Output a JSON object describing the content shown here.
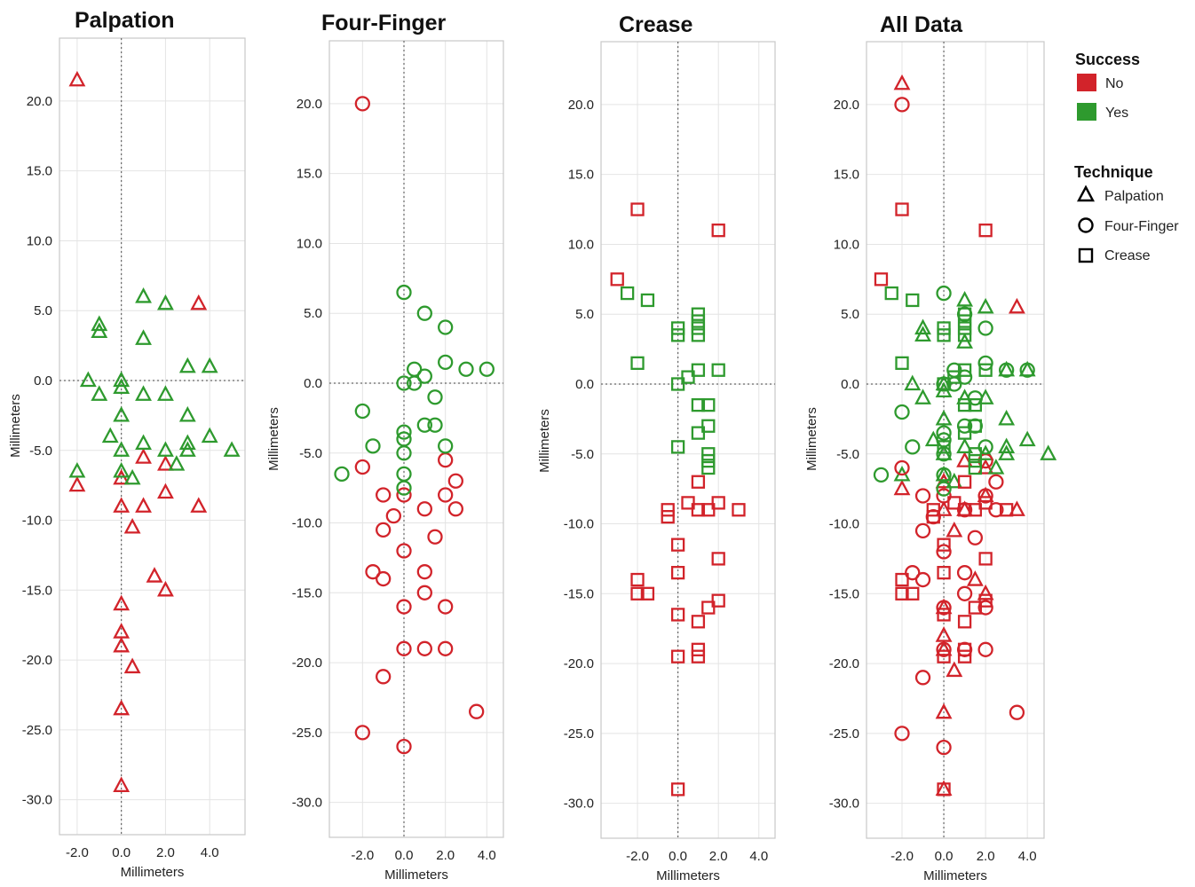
{
  "colors": {
    "No": "#d2232a",
    "Yes": "#2e9a2e",
    "grid": "#e4e4e4",
    "frame": "#c8c8c8",
    "ref": "#666666"
  },
  "legend": {
    "success_title": "Success",
    "success_items": [
      {
        "key": "No",
        "label": "No"
      },
      {
        "key": "Yes",
        "label": "Yes"
      }
    ],
    "technique_title": "Technique",
    "technique_items": [
      {
        "shape": "triangle",
        "label": "Palpation"
      },
      {
        "shape": "circle",
        "label": "Four-Finger"
      },
      {
        "shape": "square",
        "label": "Crease"
      }
    ],
    "placement": "right"
  },
  "chart_data": [
    {
      "type": "scatter",
      "title": "Palpation",
      "xlabel": "Millimeters",
      "ylabel": "Millimeters",
      "xticks": [
        -2.0,
        0.0,
        2.0,
        4.0
      ],
      "yticks": [
        20.0,
        15.0,
        10.0,
        5.0,
        0.0,
        -5.0,
        -10.0,
        -15.0,
        -20.0,
        -25.0,
        -30.0
      ],
      "tick_labels_x": [
        "-2.0",
        "0.0",
        "2.0",
        "4.0"
      ],
      "tick_labels_y": [
        "20.0",
        "15.0",
        "10.0",
        "5.0",
        "0.0",
        "-5.0",
        "-10.0",
        "-15.0",
        "-20.0",
        "-25.0",
        "-30.0"
      ],
      "xlim": [
        -2.8,
        5.6
      ],
      "ylim": [
        -32.5,
        24.5
      ],
      "grid": true,
      "points": [
        {
          "x": -2.0,
          "y": 21.5,
          "s": "No",
          "t": "triangle"
        },
        {
          "x": 3.5,
          "y": 5.5,
          "s": "No",
          "t": "triangle"
        },
        {
          "x": 0.0,
          "y": -7.0,
          "s": "No",
          "t": "triangle"
        },
        {
          "x": -2.0,
          "y": -7.5,
          "s": "No",
          "t": "triangle"
        },
        {
          "x": 2.0,
          "y": -6.0,
          "s": "No",
          "t": "triangle"
        },
        {
          "x": 1.0,
          "y": -5.5,
          "s": "No",
          "t": "triangle"
        },
        {
          "x": 2.0,
          "y": -8.0,
          "s": "No",
          "t": "triangle"
        },
        {
          "x": 0.0,
          "y": -9.0,
          "s": "No",
          "t": "triangle"
        },
        {
          "x": 1.0,
          "y": -9.0,
          "s": "No",
          "t": "triangle"
        },
        {
          "x": 3.5,
          "y": -9.0,
          "s": "No",
          "t": "triangle"
        },
        {
          "x": 0.5,
          "y": -10.5,
          "s": "No",
          "t": "triangle"
        },
        {
          "x": 1.5,
          "y": -14.0,
          "s": "No",
          "t": "triangle"
        },
        {
          "x": 2.0,
          "y": -15.0,
          "s": "No",
          "t": "triangle"
        },
        {
          "x": 0.0,
          "y": -16.0,
          "s": "No",
          "t": "triangle"
        },
        {
          "x": 0.0,
          "y": -18.0,
          "s": "No",
          "t": "triangle"
        },
        {
          "x": 0.0,
          "y": -19.0,
          "s": "No",
          "t": "triangle"
        },
        {
          "x": 0.5,
          "y": -20.5,
          "s": "No",
          "t": "triangle"
        },
        {
          "x": 0.0,
          "y": -23.5,
          "s": "No",
          "t": "triangle"
        },
        {
          "x": 0.0,
          "y": -29.0,
          "s": "No",
          "t": "triangle"
        },
        {
          "x": 1.0,
          "y": 6.0,
          "s": "Yes",
          "t": "triangle"
        },
        {
          "x": 2.0,
          "y": 5.5,
          "s": "Yes",
          "t": "triangle"
        },
        {
          "x": -1.0,
          "y": 4.0,
          "s": "Yes",
          "t": "triangle"
        },
        {
          "x": -1.0,
          "y": 3.5,
          "s": "Yes",
          "t": "triangle"
        },
        {
          "x": 1.0,
          "y": 3.0,
          "s": "Yes",
          "t": "triangle"
        },
        {
          "x": 3.0,
          "y": 1.0,
          "s": "Yes",
          "t": "triangle"
        },
        {
          "x": 4.0,
          "y": 1.0,
          "s": "Yes",
          "t": "triangle"
        },
        {
          "x": -1.5,
          "y": 0.0,
          "s": "Yes",
          "t": "triangle"
        },
        {
          "x": 0.0,
          "y": 0.0,
          "s": "Yes",
          "t": "triangle"
        },
        {
          "x": 0.0,
          "y": -0.5,
          "s": "Yes",
          "t": "triangle"
        },
        {
          "x": -1.0,
          "y": -1.0,
          "s": "Yes",
          "t": "triangle"
        },
        {
          "x": 1.0,
          "y": -1.0,
          "s": "Yes",
          "t": "triangle"
        },
        {
          "x": 2.0,
          "y": -1.0,
          "s": "Yes",
          "t": "triangle"
        },
        {
          "x": 0.0,
          "y": -2.5,
          "s": "Yes",
          "t": "triangle"
        },
        {
          "x": 3.0,
          "y": -2.5,
          "s": "Yes",
          "t": "triangle"
        },
        {
          "x": -0.5,
          "y": -4.0,
          "s": "Yes",
          "t": "triangle"
        },
        {
          "x": 4.0,
          "y": -4.0,
          "s": "Yes",
          "t": "triangle"
        },
        {
          "x": 1.0,
          "y": -4.5,
          "s": "Yes",
          "t": "triangle"
        },
        {
          "x": 3.0,
          "y": -4.5,
          "s": "Yes",
          "t": "triangle"
        },
        {
          "x": 0.0,
          "y": -5.0,
          "s": "Yes",
          "t": "triangle"
        },
        {
          "x": 2.0,
          "y": -5.0,
          "s": "Yes",
          "t": "triangle"
        },
        {
          "x": 3.0,
          "y": -5.0,
          "s": "Yes",
          "t": "triangle"
        },
        {
          "x": 5.0,
          "y": -5.0,
          "s": "Yes",
          "t": "triangle"
        },
        {
          "x": 2.5,
          "y": -6.0,
          "s": "Yes",
          "t": "triangle"
        },
        {
          "x": -2.0,
          "y": -6.5,
          "s": "Yes",
          "t": "triangle"
        },
        {
          "x": 0.0,
          "y": -6.5,
          "s": "Yes",
          "t": "triangle"
        },
        {
          "x": 0.5,
          "y": -7.0,
          "s": "Yes",
          "t": "triangle"
        }
      ]
    },
    {
      "type": "scatter",
      "title": "Four-Finger",
      "xlabel": "Millimeters",
      "ylabel": "Millimeters",
      "xticks": [
        -2.0,
        0.0,
        2.0,
        4.0
      ],
      "yticks": [
        20.0,
        15.0,
        10.0,
        5.0,
        0.0,
        -5.0,
        -10.0,
        -15.0,
        -20.0,
        -25.0,
        -30.0
      ],
      "tick_labels_x": [
        "-2.0",
        "0.0",
        "2.0",
        "4.0"
      ],
      "tick_labels_y": [
        "20.0",
        "15.0",
        "10.0",
        "5.0",
        "0.0",
        "-5.0",
        "-10.0",
        "-15.0",
        "-20.0",
        "-25.0",
        "-30.0"
      ],
      "xlim": [
        -3.6,
        4.8
      ],
      "ylim": [
        -32.5,
        24.5
      ],
      "grid": true,
      "points": [
        {
          "x": -2.0,
          "y": 20.0,
          "s": "No",
          "t": "circle"
        },
        {
          "x": -2.0,
          "y": -6.0,
          "s": "No",
          "t": "circle"
        },
        {
          "x": 2.0,
          "y": -5.5,
          "s": "No",
          "t": "circle"
        },
        {
          "x": 2.5,
          "y": -7.0,
          "s": "No",
          "t": "circle"
        },
        {
          "x": 0.0,
          "y": -8.0,
          "s": "No",
          "t": "circle"
        },
        {
          "x": -1.0,
          "y": -8.0,
          "s": "No",
          "t": "circle"
        },
        {
          "x": 2.0,
          "y": -8.0,
          "s": "No",
          "t": "circle"
        },
        {
          "x": 1.0,
          "y": -9.0,
          "s": "No",
          "t": "circle"
        },
        {
          "x": 2.5,
          "y": -9.0,
          "s": "No",
          "t": "circle"
        },
        {
          "x": -0.5,
          "y": -9.5,
          "s": "No",
          "t": "circle"
        },
        {
          "x": -1.0,
          "y": -10.5,
          "s": "No",
          "t": "circle"
        },
        {
          "x": 1.5,
          "y": -11.0,
          "s": "No",
          "t": "circle"
        },
        {
          "x": 0.0,
          "y": -12.0,
          "s": "No",
          "t": "circle"
        },
        {
          "x": -1.5,
          "y": -13.5,
          "s": "No",
          "t": "circle"
        },
        {
          "x": 1.0,
          "y": -13.5,
          "s": "No",
          "t": "circle"
        },
        {
          "x": -1.0,
          "y": -14.0,
          "s": "No",
          "t": "circle"
        },
        {
          "x": 1.0,
          "y": -15.0,
          "s": "No",
          "t": "circle"
        },
        {
          "x": 0.0,
          "y": -16.0,
          "s": "No",
          "t": "circle"
        },
        {
          "x": 2.0,
          "y": -16.0,
          "s": "No",
          "t": "circle"
        },
        {
          "x": 0.0,
          "y": -19.0,
          "s": "No",
          "t": "circle"
        },
        {
          "x": 1.0,
          "y": -19.0,
          "s": "No",
          "t": "circle"
        },
        {
          "x": 2.0,
          "y": -19.0,
          "s": "No",
          "t": "circle"
        },
        {
          "x": -1.0,
          "y": -21.0,
          "s": "No",
          "t": "circle"
        },
        {
          "x": 3.5,
          "y": -23.5,
          "s": "No",
          "t": "circle"
        },
        {
          "x": -2.0,
          "y": -25.0,
          "s": "No",
          "t": "circle"
        },
        {
          "x": 0.0,
          "y": -26.0,
          "s": "No",
          "t": "circle"
        },
        {
          "x": 0.0,
          "y": 6.5,
          "s": "Yes",
          "t": "circle"
        },
        {
          "x": 1.0,
          "y": 5.0,
          "s": "Yes",
          "t": "circle"
        },
        {
          "x": 2.0,
          "y": 4.0,
          "s": "Yes",
          "t": "circle"
        },
        {
          "x": 2.0,
          "y": 1.5,
          "s": "Yes",
          "t": "circle"
        },
        {
          "x": 0.5,
          "y": 1.0,
          "s": "Yes",
          "t": "circle"
        },
        {
          "x": 3.0,
          "y": 1.0,
          "s": "Yes",
          "t": "circle"
        },
        {
          "x": 4.0,
          "y": 1.0,
          "s": "Yes",
          "t": "circle"
        },
        {
          "x": 1.0,
          "y": 0.5,
          "s": "Yes",
          "t": "circle"
        },
        {
          "x": 0.0,
          "y": 0.0,
          "s": "Yes",
          "t": "circle"
        },
        {
          "x": 0.5,
          "y": 0.0,
          "s": "Yes",
          "t": "circle"
        },
        {
          "x": 1.5,
          "y": -1.0,
          "s": "Yes",
          "t": "circle"
        },
        {
          "x": -2.0,
          "y": -2.0,
          "s": "Yes",
          "t": "circle"
        },
        {
          "x": 1.0,
          "y": -3.0,
          "s": "Yes",
          "t": "circle"
        },
        {
          "x": 1.5,
          "y": -3.0,
          "s": "Yes",
          "t": "circle"
        },
        {
          "x": 0.0,
          "y": -3.5,
          "s": "Yes",
          "t": "circle"
        },
        {
          "x": 0.0,
          "y": -4.0,
          "s": "Yes",
          "t": "circle"
        },
        {
          "x": -1.5,
          "y": -4.5,
          "s": "Yes",
          "t": "circle"
        },
        {
          "x": 2.0,
          "y": -4.5,
          "s": "Yes",
          "t": "circle"
        },
        {
          "x": 0.0,
          "y": -5.0,
          "s": "Yes",
          "t": "circle"
        },
        {
          "x": -3.0,
          "y": -6.5,
          "s": "Yes",
          "t": "circle"
        },
        {
          "x": 0.0,
          "y": -6.5,
          "s": "Yes",
          "t": "circle"
        },
        {
          "x": 0.0,
          "y": -7.5,
          "s": "Yes",
          "t": "circle"
        }
      ]
    },
    {
      "type": "scatter",
      "title": "Crease",
      "xlabel": "Millimeters",
      "ylabel": "Millimeters",
      "xticks": [
        -2.0,
        0.0,
        2.0,
        4.0
      ],
      "yticks": [
        20.0,
        15.0,
        10.0,
        5.0,
        0.0,
        -5.0,
        -10.0,
        -15.0,
        -20.0,
        -25.0,
        -30.0
      ],
      "tick_labels_x": [
        "-2.0",
        "0.0",
        "2.0",
        "4.0"
      ],
      "tick_labels_y": [
        "20.0",
        "15.0",
        "10.0",
        "5.0",
        "0.0",
        "-5.0",
        "-10.0",
        "-15.0",
        "-20.0",
        "-25.0",
        "-30.0"
      ],
      "xlim": [
        -3.8,
        4.8
      ],
      "ylim": [
        -32.5,
        24.5
      ],
      "grid": true,
      "points": [
        {
          "x": -2.0,
          "y": 12.5,
          "s": "No",
          "t": "square"
        },
        {
          "x": 2.0,
          "y": 11.0,
          "s": "No",
          "t": "square"
        },
        {
          "x": -3.0,
          "y": 7.5,
          "s": "No",
          "t": "square"
        },
        {
          "x": 1.0,
          "y": -7.0,
          "s": "No",
          "t": "square"
        },
        {
          "x": 0.5,
          "y": -8.5,
          "s": "No",
          "t": "square"
        },
        {
          "x": 2.0,
          "y": -8.5,
          "s": "No",
          "t": "square"
        },
        {
          "x": 1.0,
          "y": -9.0,
          "s": "No",
          "t": "square"
        },
        {
          "x": 1.5,
          "y": -9.0,
          "s": "No",
          "t": "square"
        },
        {
          "x": 3.0,
          "y": -9.0,
          "s": "No",
          "t": "square"
        },
        {
          "x": -0.5,
          "y": -9.0,
          "s": "No",
          "t": "square"
        },
        {
          "x": -0.5,
          "y": -9.5,
          "s": "No",
          "t": "square"
        },
        {
          "x": 0.0,
          "y": -11.5,
          "s": "No",
          "t": "square"
        },
        {
          "x": 2.0,
          "y": -12.5,
          "s": "No",
          "t": "square"
        },
        {
          "x": 0.0,
          "y": -13.5,
          "s": "No",
          "t": "square"
        },
        {
          "x": -2.0,
          "y": -14.0,
          "s": "No",
          "t": "square"
        },
        {
          "x": -2.0,
          "y": -15.0,
          "s": "No",
          "t": "square"
        },
        {
          "x": -1.5,
          "y": -15.0,
          "s": "No",
          "t": "square"
        },
        {
          "x": 2.0,
          "y": -15.5,
          "s": "No",
          "t": "square"
        },
        {
          "x": 1.5,
          "y": -16.0,
          "s": "No",
          "t": "square"
        },
        {
          "x": 0.0,
          "y": -16.5,
          "s": "No",
          "t": "square"
        },
        {
          "x": 1.0,
          "y": -17.0,
          "s": "No",
          "t": "square"
        },
        {
          "x": 1.0,
          "y": -19.0,
          "s": "No",
          "t": "square"
        },
        {
          "x": 1.0,
          "y": -19.5,
          "s": "No",
          "t": "square"
        },
        {
          "x": 0.0,
          "y": -19.5,
          "s": "No",
          "t": "square"
        },
        {
          "x": 0.0,
          "y": -29.0,
          "s": "No",
          "t": "square"
        },
        {
          "x": -2.5,
          "y": 6.5,
          "s": "Yes",
          "t": "square"
        },
        {
          "x": -1.5,
          "y": 6.0,
          "s": "Yes",
          "t": "square"
        },
        {
          "x": 1.0,
          "y": 5.0,
          "s": "Yes",
          "t": "square"
        },
        {
          "x": 1.0,
          "y": 4.5,
          "s": "Yes",
          "t": "square"
        },
        {
          "x": 0.0,
          "y": 4.0,
          "s": "Yes",
          "t": "square"
        },
        {
          "x": 1.0,
          "y": 4.0,
          "s": "Yes",
          "t": "square"
        },
        {
          "x": 0.0,
          "y": 3.5,
          "s": "Yes",
          "t": "square"
        },
        {
          "x": 1.0,
          "y": 3.5,
          "s": "Yes",
          "t": "square"
        },
        {
          "x": -2.0,
          "y": 1.5,
          "s": "Yes",
          "t": "square"
        },
        {
          "x": 1.0,
          "y": 1.0,
          "s": "Yes",
          "t": "square"
        },
        {
          "x": 2.0,
          "y": 1.0,
          "s": "Yes",
          "t": "square"
        },
        {
          "x": 0.5,
          "y": 0.5,
          "s": "Yes",
          "t": "square"
        },
        {
          "x": 0.0,
          "y": 0.0,
          "s": "Yes",
          "t": "square"
        },
        {
          "x": 1.0,
          "y": -1.5,
          "s": "Yes",
          "t": "square"
        },
        {
          "x": 1.5,
          "y": -1.5,
          "s": "Yes",
          "t": "square"
        },
        {
          "x": 1.5,
          "y": -3.0,
          "s": "Yes",
          "t": "square"
        },
        {
          "x": 1.0,
          "y": -3.5,
          "s": "Yes",
          "t": "square"
        },
        {
          "x": 0.0,
          "y": -4.5,
          "s": "Yes",
          "t": "square"
        },
        {
          "x": 1.5,
          "y": -5.0,
          "s": "Yes",
          "t": "square"
        },
        {
          "x": 1.5,
          "y": -5.5,
          "s": "Yes",
          "t": "square"
        },
        {
          "x": 1.5,
          "y": -6.0,
          "s": "Yes",
          "t": "square"
        }
      ]
    },
    {
      "type": "scatter",
      "title": "All Data",
      "xlabel": "Millimeters",
      "ylabel": "Millimeters",
      "xticks": [
        -2.0,
        0.0,
        2.0,
        4.0
      ],
      "yticks": [
        20.0,
        15.0,
        10.0,
        5.0,
        0.0,
        -5.0,
        -10.0,
        -15.0,
        -20.0,
        -25.0,
        -30.0
      ],
      "tick_labels_x": [
        "-2.0",
        "0.0",
        "2.0",
        "4.0"
      ],
      "tick_labels_y": [
        "20.0",
        "15.0",
        "10.0",
        "5.0",
        "0.0",
        "-5.0",
        "-10.0",
        "-15.0",
        "-20.0",
        "-25.0",
        "-30.0"
      ],
      "xlim": [
        -3.7,
        4.8
      ],
      "ylim": [
        -32.5,
        24.5
      ],
      "grid": true,
      "combined_from": [
        "Palpation",
        "Four-Finger",
        "Crease"
      ]
    }
  ]
}
